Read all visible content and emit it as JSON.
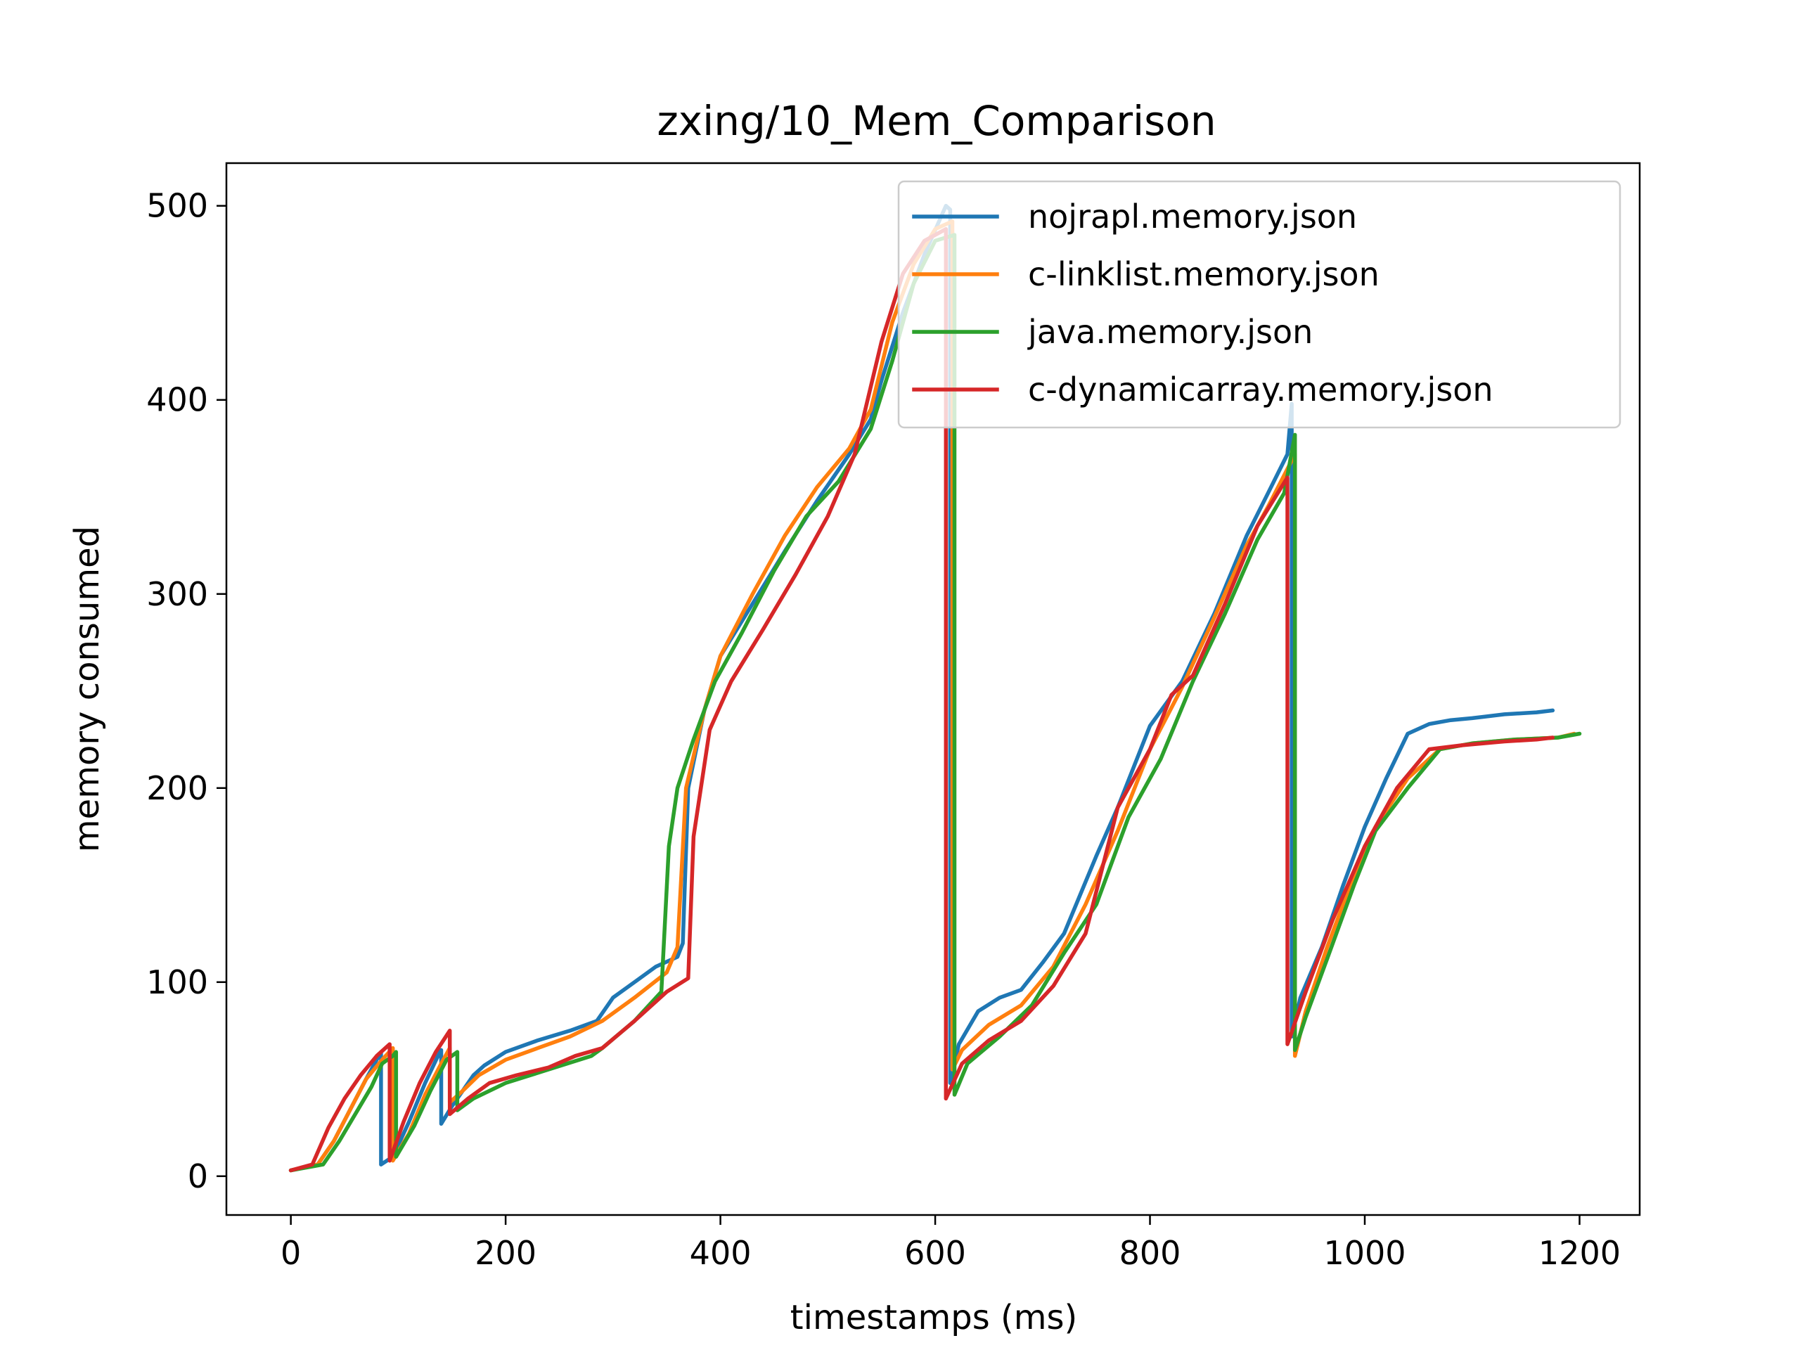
{
  "chart_data": {
    "type": "line",
    "title": "zxing/10_Mem_Comparison",
    "xlabel": "timestamps (ms)",
    "ylabel": "memory consumed",
    "xlim": [
      -60,
      1256
    ],
    "ylim": [
      -20,
      522
    ],
    "xticks": [
      0,
      200,
      400,
      600,
      800,
      1000,
      1200
    ],
    "yticks": [
      0,
      100,
      200,
      300,
      400,
      500
    ],
    "grid": false,
    "legend_position": "top-right",
    "series": [
      {
        "name": "nojrapl.memory.json",
        "color": "#1f77b4",
        "x": [
          0,
          25,
          40,
          55,
          70,
          80,
          84,
          84,
          95,
          110,
          125,
          137,
          140,
          140,
          150,
          160,
          170,
          180,
          200,
          230,
          260,
          285,
          295,
          300,
          320,
          340,
          360,
          365,
          370,
          385,
          400,
          430,
          460,
          490,
          520,
          540,
          550,
          570,
          590,
          610,
          614,
          614,
          622,
          640,
          660,
          680,
          700,
          720,
          750,
          770,
          800,
          830,
          860,
          890,
          910,
          928,
          932,
          932,
          940,
          960,
          980,
          1000,
          1020,
          1040,
          1060,
          1080,
          1100,
          1130,
          1160,
          1175
        ],
        "y": [
          3,
          6,
          18,
          34,
          50,
          60,
          64,
          6,
          10,
          28,
          48,
          62,
          65,
          27,
          36,
          44,
          52,
          57,
          64,
          70,
          75,
          80,
          88,
          92,
          100,
          108,
          113,
          120,
          200,
          240,
          268,
          295,
          322,
          348,
          372,
          390,
          410,
          445,
          475,
          500,
          498,
          48,
          68,
          85,
          92,
          96,
          110,
          125,
          165,
          190,
          232,
          255,
          290,
          330,
          352,
          372,
          398,
          72,
          92,
          118,
          150,
          180,
          205,
          228,
          233,
          235,
          236,
          238,
          239,
          240
        ]
      },
      {
        "name": "c-linklist.memory.json",
        "color": "#ff7f0e",
        "x": [
          0,
          25,
          40,
          55,
          70,
          85,
          95,
          95,
          110,
          125,
          140,
          148,
          148,
          160,
          175,
          200,
          230,
          260,
          290,
          320,
          350,
          360,
          368,
          385,
          400,
          430,
          460,
          490,
          520,
          540,
          560,
          580,
          600,
          616,
          616,
          625,
          650,
          680,
          710,
          740,
          770,
          800,
          830,
          860,
          890,
          910,
          935,
          935,
          945,
          965,
          990,
          1010,
          1040,
          1070,
          1100,
          1140,
          1180,
          1195
        ],
        "y": [
          3,
          6,
          18,
          34,
          50,
          60,
          66,
          8,
          22,
          42,
          58,
          66,
          38,
          44,
          52,
          60,
          66,
          72,
          80,
          92,
          105,
          118,
          200,
          240,
          268,
          300,
          330,
          355,
          375,
          395,
          440,
          470,
          488,
          492,
          55,
          65,
          78,
          88,
          108,
          140,
          178,
          220,
          252,
          288,
          325,
          345,
          372,
          62,
          85,
          118,
          155,
          180,
          205,
          220,
          223,
          225,
          226,
          228
        ]
      },
      {
        "name": "java.memory.json",
        "color": "#2ca02c",
        "x": [
          0,
          30,
          45,
          60,
          75,
          85,
          95,
          98,
          98,
          115,
          130,
          145,
          155,
          155,
          170,
          200,
          240,
          280,
          290,
          320,
          345,
          352,
          360,
          375,
          395,
          420,
          450,
          480,
          510,
          540,
          560,
          580,
          600,
          618,
          618,
          630,
          660,
          690,
          720,
          750,
          780,
          810,
          840,
          870,
          900,
          925,
          935,
          935,
          945,
          965,
          990,
          1010,
          1040,
          1070,
          1100,
          1140,
          1180,
          1200
        ],
        "y": [
          3,
          6,
          18,
          32,
          46,
          58,
          62,
          64,
          10,
          26,
          44,
          60,
          64,
          34,
          40,
          48,
          55,
          62,
          66,
          80,
          95,
          170,
          200,
          225,
          255,
          280,
          312,
          340,
          358,
          385,
          420,
          460,
          482,
          485,
          42,
          58,
          72,
          88,
          115,
          140,
          185,
          215,
          255,
          290,
          328,
          352,
          382,
          65,
          82,
          112,
          150,
          178,
          200,
          220,
          223,
          225,
          226,
          228
        ]
      },
      {
        "name": "c-dynamicarray.memory.json",
        "color": "#d62728",
        "x": [
          0,
          20,
          35,
          50,
          65,
          80,
          92,
          92,
          105,
          120,
          135,
          148,
          148,
          165,
          185,
          210,
          240,
          265,
          290,
          320,
          350,
          370,
          375,
          390,
          410,
          440,
          470,
          500,
          525,
          550,
          570,
          590,
          610,
          610,
          625,
          650,
          680,
          710,
          740,
          770,
          800,
          820,
          840,
          870,
          900,
          928,
          928,
          945,
          970,
          1000,
          1030,
          1060,
          1090,
          1130,
          1160,
          1175
        ],
        "y": [
          3,
          6,
          25,
          40,
          52,
          62,
          68,
          8,
          28,
          48,
          64,
          75,
          32,
          40,
          48,
          52,
          56,
          62,
          66,
          80,
          95,
          102,
          175,
          230,
          255,
          282,
          310,
          340,
          372,
          430,
          465,
          482,
          488,
          40,
          58,
          70,
          80,
          98,
          125,
          190,
          220,
          248,
          258,
          295,
          335,
          360,
          68,
          95,
          132,
          170,
          200,
          220,
          222,
          224,
          225,
          226
        ]
      }
    ]
  }
}
